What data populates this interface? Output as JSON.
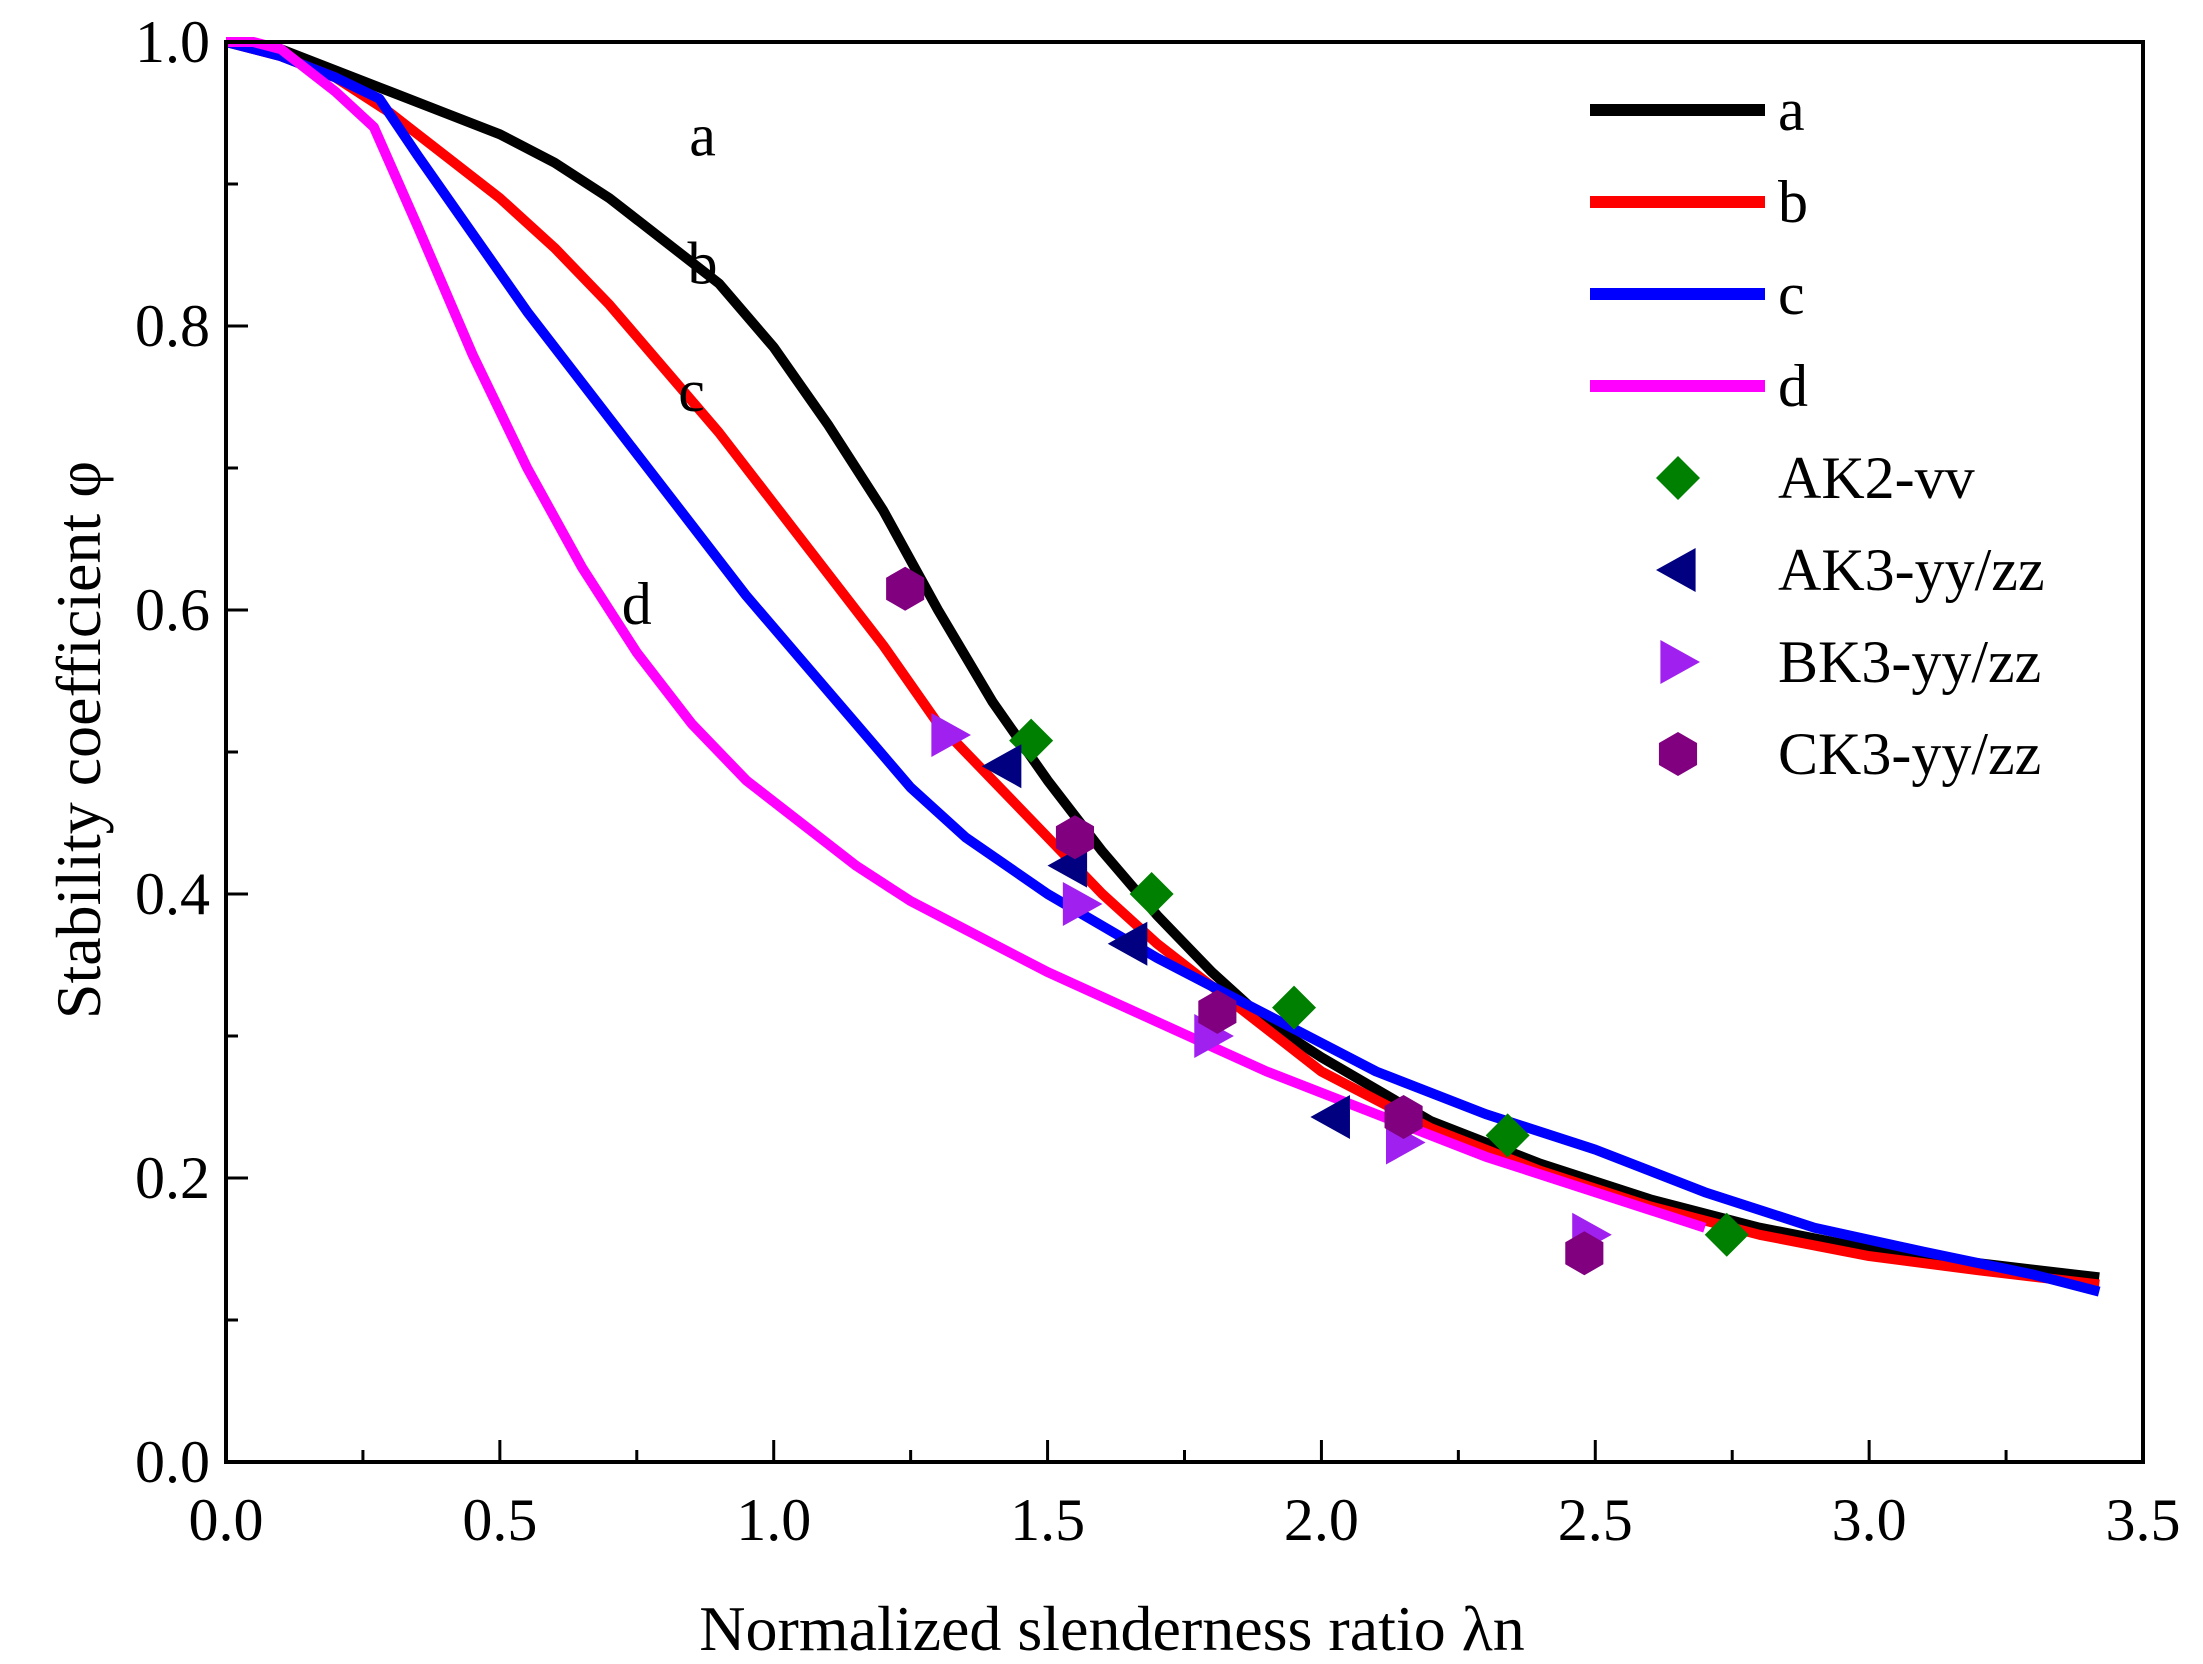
{
  "chart_data": {
    "type": "line",
    "title": "",
    "xlabel": "Normalized slenderness ratio λn",
    "ylabel": "Stability coefficient φ",
    "xlim": [
      0.0,
      3.5
    ],
    "ylim": [
      0.0,
      1.0
    ],
    "x_ticks": [
      "0.0",
      "0.5",
      "1.0",
      "1.5",
      "2.0",
      "2.5",
      "3.0",
      "3.5"
    ],
    "y_ticks": [
      "0.0",
      "0.2",
      "0.4",
      "0.6",
      "0.8",
      "1.0"
    ],
    "grid": false,
    "legend_position": "top-right",
    "series": [
      {
        "name": "a",
        "kind": "line",
        "color": "#000000",
        "label": "a",
        "label_x": 0.87,
        "label_y": 0.92,
        "x": [
          0.0,
          0.1,
          0.2,
          0.3,
          0.4,
          0.5,
          0.6,
          0.7,
          0.8,
          0.9,
          1.0,
          1.1,
          1.2,
          1.3,
          1.4,
          1.5,
          1.6,
          1.7,
          1.8,
          1.9,
          2.0,
          2.2,
          2.4,
          2.6,
          2.8,
          3.0,
          3.2,
          3.42
        ],
        "y": [
          1.0,
          0.995,
          0.98,
          0.965,
          0.95,
          0.935,
          0.915,
          0.89,
          0.86,
          0.83,
          0.785,
          0.73,
          0.67,
          0.6,
          0.535,
          0.48,
          0.43,
          0.385,
          0.345,
          0.31,
          0.285,
          0.24,
          0.21,
          0.185,
          0.165,
          0.15,
          0.14,
          0.13
        ]
      },
      {
        "name": "b",
        "kind": "line",
        "color": "#ff0000",
        "label": "b",
        "label_x": 0.87,
        "label_y": 0.83,
        "x": [
          0.0,
          0.1,
          0.2,
          0.3,
          0.4,
          0.5,
          0.6,
          0.7,
          0.8,
          0.9,
          1.0,
          1.1,
          1.2,
          1.3,
          1.4,
          1.5,
          1.6,
          1.7,
          1.8,
          1.9,
          2.0,
          2.2,
          2.4,
          2.6,
          2.8,
          3.0,
          3.2,
          3.42
        ],
        "y": [
          1.0,
          0.99,
          0.975,
          0.95,
          0.92,
          0.89,
          0.855,
          0.815,
          0.77,
          0.725,
          0.675,
          0.625,
          0.575,
          0.52,
          0.48,
          0.44,
          0.4,
          0.365,
          0.335,
          0.305,
          0.275,
          0.235,
          0.205,
          0.18,
          0.16,
          0.145,
          0.135,
          0.125
        ]
      },
      {
        "name": "c",
        "kind": "line",
        "color": "#0000ff",
        "label": "c",
        "label_x": 0.85,
        "label_y": 0.74,
        "x": [
          0.0,
          0.1,
          0.2,
          0.28,
          0.35,
          0.45,
          0.55,
          0.65,
          0.75,
          0.85,
          0.95,
          1.05,
          1.15,
          1.25,
          1.35,
          1.5,
          1.7,
          1.9,
          2.1,
          2.3,
          2.5,
          2.7,
          2.9,
          3.1,
          3.3,
          3.42
        ],
        "y": [
          1.0,
          0.99,
          0.975,
          0.96,
          0.92,
          0.865,
          0.81,
          0.76,
          0.71,
          0.66,
          0.61,
          0.565,
          0.52,
          0.475,
          0.44,
          0.4,
          0.355,
          0.315,
          0.275,
          0.245,
          0.22,
          0.19,
          0.165,
          0.148,
          0.132,
          0.12
        ]
      },
      {
        "name": "d",
        "kind": "line",
        "color": "#ff00ff",
        "label": "d",
        "label_x": 0.75,
        "label_y": 0.59,
        "x": [
          0.0,
          0.05,
          0.1,
          0.15,
          0.2,
          0.27,
          0.35,
          0.45,
          0.55,
          0.65,
          0.75,
          0.85,
          0.95,
          1.05,
          1.15,
          1.25,
          1.35,
          1.5,
          1.7,
          1.9,
          2.1,
          2.3,
          2.5,
          2.7
        ],
        "y": [
          1.0,
          1.0,
          0.995,
          0.98,
          0.965,
          0.94,
          0.87,
          0.78,
          0.7,
          0.63,
          0.57,
          0.52,
          0.48,
          0.45,
          0.42,
          0.395,
          0.375,
          0.345,
          0.31,
          0.275,
          0.245,
          0.215,
          0.19,
          0.165
        ]
      }
    ],
    "scatter": [
      {
        "name": "AK2-vv",
        "marker": "diamond",
        "color": "#008000",
        "x": [
          1.47,
          1.69,
          1.95,
          2.34,
          2.74
        ],
        "y": [
          0.508,
          0.4,
          0.32,
          0.23,
          0.16
        ]
      },
      {
        "name": "AK3-yy/zz",
        "marker": "triangle-left",
        "color": "#000080",
        "x": [
          1.42,
          1.54,
          1.65,
          2.02
        ],
        "y": [
          0.49,
          0.42,
          0.365,
          0.243
        ]
      },
      {
        "name": "BK3-yy/zz",
        "marker": "triangle-right",
        "color": "#a020f0",
        "x": [
          1.32,
          1.56,
          1.8,
          2.15,
          2.49
        ],
        "y": [
          0.512,
          0.393,
          0.3,
          0.225,
          0.16
        ]
      },
      {
        "name": "CK3-yy/zz",
        "marker": "hexagon",
        "color": "#800080",
        "x": [
          1.24,
          1.55,
          1.81,
          2.15,
          2.48
        ],
        "y": [
          0.615,
          0.44,
          0.317,
          0.243,
          0.147
        ]
      }
    ]
  }
}
